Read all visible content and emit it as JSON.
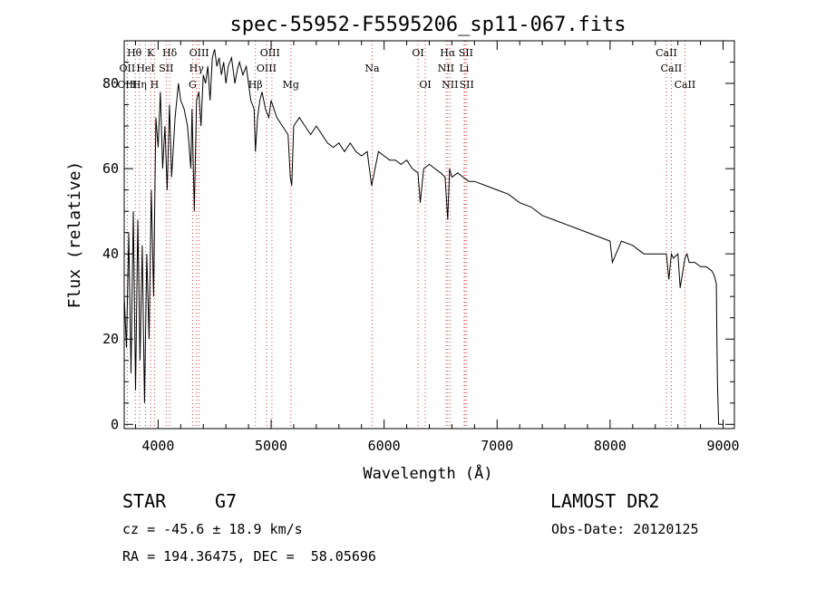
{
  "chart_data": {
    "type": "line",
    "title": "spec-55952-F5595206_sp11-067.fits",
    "xlabel": "Wavelength (Å)",
    "ylabel": "Flux (relative)",
    "xlim": [
      3700,
      9100
    ],
    "ylim": [
      -1,
      90
    ],
    "xticks": [
      4000,
      5000,
      6000,
      7000,
      8000,
      9000
    ],
    "yticks": [
      0,
      20,
      40,
      60,
      80
    ],
    "grid": false,
    "series": [
      {
        "name": "spectrum",
        "x": [
          3700,
          3720,
          3740,
          3760,
          3780,
          3800,
          3820,
          3840,
          3860,
          3880,
          3900,
          3920,
          3940,
          3960,
          3980,
          4000,
          4020,
          4040,
          4060,
          4080,
          4100,
          4120,
          4150,
          4180,
          4200,
          4230,
          4260,
          4290,
          4300,
          4320,
          4340,
          4360,
          4380,
          4400,
          4420,
          4440,
          4460,
          4480,
          4500,
          4520,
          4540,
          4560,
          4580,
          4600,
          4620,
          4650,
          4680,
          4700,
          4720,
          4750,
          4780,
          4800,
          4820,
          4850,
          4861,
          4880,
          4900,
          4920,
          4950,
          4980,
          5000,
          5050,
          5100,
          5150,
          5170,
          5183,
          5200,
          5250,
          5300,
          5350,
          5400,
          5450,
          5500,
          5550,
          5600,
          5650,
          5700,
          5750,
          5800,
          5850,
          5890,
          5950,
          6000,
          6050,
          6100,
          6150,
          6200,
          6250,
          6300,
          6320,
          6350,
          6400,
          6450,
          6500,
          6540,
          6563,
          6580,
          6600,
          6650,
          6700,
          6750,
          6800,
          6900,
          7000,
          7100,
          7200,
          7300,
          7400,
          7500,
          7600,
          7700,
          7800,
          7900,
          8000,
          8020,
          8100,
          8200,
          8300,
          8400,
          8450,
          8498,
          8520,
          8542,
          8560,
          8600,
          8620,
          8662,
          8680,
          8700,
          8750,
          8800,
          8850,
          8900,
          8920,
          8940,
          8945,
          8950,
          8960,
          9000
        ],
        "values": [
          30,
          18,
          45,
          12,
          50,
          8,
          48,
          15,
          42,
          5,
          40,
          20,
          55,
          30,
          72,
          65,
          78,
          60,
          70,
          55,
          75,
          58,
          72,
          80,
          76,
          74,
          70,
          60,
          74,
          50,
          76,
          78,
          70,
          82,
          80,
          84,
          76,
          86,
          88,
          84,
          86,
          82,
          85,
          80,
          84,
          86,
          80,
          83,
          85,
          82,
          84,
          80,
          76,
          74,
          64,
          72,
          76,
          78,
          74,
          72,
          76,
          72,
          70,
          68,
          58,
          56,
          70,
          72,
          70,
          68,
          70,
          68,
          66,
          65,
          66,
          64,
          66,
          64,
          63,
          64,
          56,
          64,
          63,
          62,
          62,
          61,
          62,
          60,
          59,
          52,
          60,
          61,
          60,
          59,
          58,
          48,
          60,
          58,
          59,
          58,
          57,
          57,
          56,
          55,
          54,
          52,
          51,
          49,
          48,
          47,
          46,
          45,
          44,
          43,
          38,
          43,
          42,
          40,
          40,
          40,
          40,
          34,
          40,
          39,
          40,
          32,
          39,
          40,
          38,
          38,
          37,
          37,
          36,
          35,
          33,
          20,
          10,
          0,
          0
        ]
      }
    ],
    "lines": [
      {
        "label": "Hθ",
        "wavelength": 3798
      },
      {
        "label": "OII",
        "wavelength": 3727
      },
      {
        "label": "Hη",
        "wavelength": 3835
      },
      {
        "label": "HeI",
        "wavelength": 3889
      },
      {
        "label": "K",
        "wavelength": 3934
      },
      {
        "label": "H",
        "wavelength": 3968
      },
      {
        "label": "SII",
        "wavelength": 4072
      },
      {
        "label": "Hδ",
        "wavelength": 4102
      },
      {
        "label": "OIII",
        "wavelength": 4363
      },
      {
        "label": "Hγ",
        "wavelength": 4340
      },
      {
        "label": "G",
        "wavelength": 4305
      },
      {
        "label": "Hβ",
        "wavelength": 4861
      },
      {
        "label": "OIII",
        "wavelength": 4959
      },
      {
        "label": "OIII",
        "wavelength": 5007
      },
      {
        "label": "Mg",
        "wavelength": 5175
      },
      {
        "label": "Na",
        "wavelength": 5894
      },
      {
        "label": "OI",
        "wavelength": 6300
      },
      {
        "label": "OI",
        "wavelength": 6364
      },
      {
        "label": "NII",
        "wavelength": 6548
      },
      {
        "label": "Hα",
        "wavelength": 6563
      },
      {
        "label": "NII",
        "wavelength": 6583
      },
      {
        "label": "Li",
        "wavelength": 6708
      },
      {
        "label": "SII",
        "wavelength": 6716
      },
      {
        "label": "SII",
        "wavelength": 6731
      },
      {
        "label": "CaII",
        "wavelength": 8498
      },
      {
        "label": "CaII",
        "wavelength": 8542
      },
      {
        "label": "CaII",
        "wavelength": 8662
      }
    ],
    "markerLabels": [
      {
        "text": "Hθ",
        "wavelength": 3790,
        "row": 0
      },
      {
        "text": "K",
        "wavelength": 3934,
        "row": 0
      },
      {
        "text": "Hδ",
        "wavelength": 4102,
        "row": 0
      },
      {
        "text": "OIII",
        "wavelength": 4363,
        "row": 0
      },
      {
        "text": "OIII",
        "wavelength": 4990,
        "row": 0
      },
      {
        "text": "OI",
        "wavelength": 6300,
        "row": 0
      },
      {
        "text": "Hα",
        "wavelength": 6563,
        "row": 0
      },
      {
        "text": "SII",
        "wavelength": 6724,
        "row": 0
      },
      {
        "text": "CaII",
        "wavelength": 8498,
        "row": 0
      },
      {
        "text": "OII",
        "wavelength": 3727,
        "row": 1
      },
      {
        "text": "HeI",
        "wavelength": 3889,
        "row": 1
      },
      {
        "text": "SII",
        "wavelength": 4072,
        "row": 1
      },
      {
        "text": "Hγ",
        "wavelength": 4340,
        "row": 1
      },
      {
        "text": "OIII",
        "wavelength": 4959,
        "row": 1
      },
      {
        "text": "Na",
        "wavelength": 5894,
        "row": 1
      },
      {
        "text": "NII",
        "wavelength": 6548,
        "row": 1
      },
      {
        "text": "Li",
        "wavelength": 6708,
        "row": 1
      },
      {
        "text": "CaII",
        "wavelength": 8542,
        "row": 1
      },
      {
        "text": "OIII",
        "wavelength": 3727,
        "row": 2
      },
      {
        "text": "Hη",
        "wavelength": 3835,
        "row": 2
      },
      {
        "text": "H",
        "wavelength": 3968,
        "row": 2
      },
      {
        "text": "G",
        "wavelength": 4305,
        "row": 2
      },
      {
        "text": "Hβ",
        "wavelength": 4861,
        "row": 2
      },
      {
        "text": "Mg",
        "wavelength": 5175,
        "row": 2
      },
      {
        "text": "OI",
        "wavelength": 6364,
        "row": 2
      },
      {
        "text": "NII",
        "wavelength": 6583,
        "row": 2
      },
      {
        "text": "SII",
        "wavelength": 6731,
        "row": 2
      },
      {
        "text": "CaII",
        "wavelength": 8662,
        "row": 2
      }
    ]
  },
  "info": {
    "class_label": "STAR",
    "subclass": "G7",
    "survey": "LAMOST DR2",
    "redshift": "cz = -45.6 ± 18.9 km/s",
    "obs_date": "Obs-Date: 20120125",
    "coords": "RA = 194.36475, DEC =  58.05696"
  }
}
